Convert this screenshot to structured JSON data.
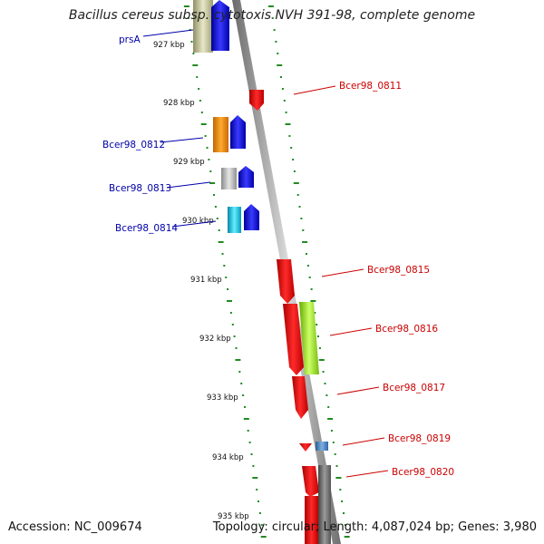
{
  "title": "Bacillus cereus subsp. cytotoxis NVH 391-98, complete genome",
  "footer": {
    "accession": "Accession: NC_009674",
    "summary": "Topology: circular; Length: 4,087,024 bp; Genes: 3,980"
  },
  "colors": {
    "forward_label": "#0000aa",
    "reverse_label": "#cc0000",
    "tick": "#228b22",
    "backbone": "#8a8a8a"
  },
  "kbp_ticks": [
    "927 kbp",
    "928 kbp",
    "929 kbp",
    "930 kbp",
    "931 kbp",
    "932 kbp",
    "933 kbp",
    "934 kbp",
    "935 kbp"
  ],
  "forward_genes": [
    {
      "name": "prsA"
    },
    {
      "name": "Bcer98_0812"
    },
    {
      "name": "Bcer98_0813"
    },
    {
      "name": "Bcer98_0814"
    }
  ],
  "reverse_genes": [
    {
      "name": "Bcer98_0811"
    },
    {
      "name": "Bcer98_0815"
    },
    {
      "name": "Bcer98_0816"
    },
    {
      "name": "Bcer98_0817"
    },
    {
      "name": "Bcer98_0819"
    },
    {
      "name": "Bcer98_0820"
    }
  ]
}
